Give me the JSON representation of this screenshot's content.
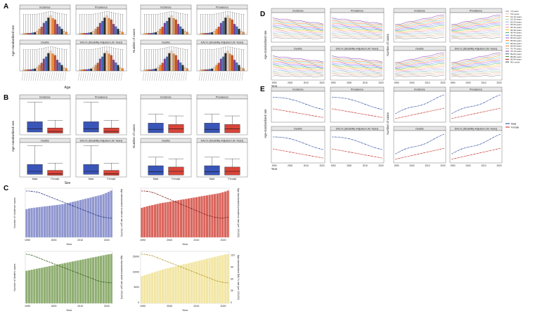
{
  "chart_data": [
    {
      "panel": "A",
      "type": "bar",
      "facets": [
        "Incidence",
        "Prevalence",
        "Deaths",
        "DALYs (Disability-Adjusted Life Years)"
      ],
      "ylabel_left": "Age-standardized rate",
      "ylabel_right": "Number of cases",
      "xlabel": "Age",
      "bar_colors": [
        "#f1c7a6",
        "#e88b3c",
        "#c94f2a",
        "#7b3f99",
        "#3d6bb3",
        "#2b2b2b"
      ]
    },
    {
      "panel": "B",
      "type": "box",
      "facets": [
        "Incidence",
        "Prevalence",
        "Deaths",
        "DALYs (Disability-Adjusted Life Years)"
      ],
      "categories": [
        "Male",
        "Female"
      ],
      "ylabel_left": "Age-standardized rate",
      "ylabel_right": "Number of cases",
      "xlabel": "Sex",
      "colors": {
        "Male": "#3a55b8",
        "Female": "#d9453a"
      }
    },
    {
      "panel": "C",
      "type": "bar",
      "xlabel": "Year",
      "x_ticks": [
        "1990",
        "2000",
        "2010",
        "2020"
      ],
      "subplots": [
        {
          "name": "incidence",
          "ylabel_left": "Number of incidence cases",
          "ylabel_right": "Age-standardized incidence rate (per 100,000)",
          "bar_color": "#8f96cf",
          "line_color": "#23307a",
          "counts": [
            180,
            184,
            187,
            189,
            191,
            193,
            195,
            197,
            199,
            201,
            203,
            205,
            207,
            209,
            212,
            215,
            218,
            222,
            226,
            230,
            234,
            238,
            242,
            246,
            250,
            254,
            258,
            262,
            266,
            270,
            276,
            283,
            290,
            298
          ],
          "rate": [
            8.0,
            8.0,
            7.95,
            7.9,
            7.85,
            7.75,
            7.6,
            7.45,
            7.3,
            7.15,
            7.0,
            6.85,
            6.7,
            6.55,
            6.4,
            6.25,
            6.1,
            5.95,
            5.8,
            5.65,
            5.5,
            5.35,
            5.2,
            5.05,
            4.9,
            4.75,
            4.6,
            4.45,
            4.3,
            4.2,
            4.1,
            4.05,
            4.0,
            3.98
          ]
        },
        {
          "name": "prevalence",
          "ylabel_right": "Age-standardized prevalence rate (per 100,000)",
          "bar_color": "#d9655c",
          "line_color": "#7a1a14",
          "counts": [
            200,
            205,
            210,
            214,
            218,
            222,
            226,
            230,
            233,
            236,
            239,
            242,
            245,
            248,
            251,
            254,
            257,
            260,
            263,
            266,
            269,
            272,
            275,
            278,
            281,
            284,
            287,
            290,
            293,
            296,
            300,
            305,
            310,
            316
          ],
          "rate": [
            9.0,
            9.0,
            8.95,
            8.9,
            8.8,
            8.7,
            8.55,
            8.4,
            8.25,
            8.1,
            7.95,
            7.8,
            7.65,
            7.5,
            7.35,
            7.2,
            7.05,
            6.9,
            6.75,
            6.6,
            6.45,
            6.3,
            6.15,
            6.0,
            5.85,
            5.7,
            5.6,
            5.5,
            5.4,
            5.35,
            5.3,
            5.3,
            5.35,
            5.4
          ]
        },
        {
          "name": "deaths",
          "ylabel_left": "Number of deaths cases",
          "ylabel_right": "Age-standardized death rate (per 100,000)",
          "bar_color": "#8fae72",
          "line_color": "#2f5a1c",
          "counts": [
            190,
            193,
            196,
            199,
            202,
            205,
            208,
            211,
            214,
            217,
            220,
            223,
            226,
            229,
            232,
            235,
            238,
            241,
            244,
            247,
            250,
            253,
            256,
            259,
            262,
            265,
            268,
            271,
            274,
            277,
            280,
            283,
            286,
            288
          ],
          "rate": [
            4.1,
            4.08,
            4.05,
            4.0,
            3.95,
            3.9,
            3.85,
            3.8,
            3.75,
            3.7,
            3.65,
            3.6,
            3.55,
            3.5,
            3.45,
            3.4,
            3.35,
            3.3,
            3.25,
            3.2,
            3.15,
            3.1,
            3.05,
            3.0,
            2.95,
            2.9,
            2.85,
            2.8,
            2.75,
            2.72,
            2.7,
            2.68,
            2.67,
            2.66
          ]
        },
        {
          "name": "DALYs",
          "ylabel_right": "Age-standardized DALYs rate (per 100,000)",
          "bar_color": "#f2e6a4",
          "line_color": "#b09020",
          "y_ticks": [
            "0",
            "5000",
            "10000",
            "15000"
          ],
          "y_ticks_right": [
            "0",
            "30",
            "60",
            "90",
            "120"
          ],
          "counts": [
            6500,
            6700,
            6900,
            7100,
            7300,
            7500,
            7700,
            7900,
            8100,
            8250,
            8400,
            8550,
            8700,
            8850,
            9000,
            9150,
            9300,
            9450,
            9600,
            9750,
            9900,
            10050,
            10200,
            10350,
            10500,
            10650,
            10800,
            10950,
            11100,
            11250,
            11400,
            11550,
            11700,
            11800
          ],
          "rate": [
            120,
            120,
            119,
            118,
            117,
            115,
            113,
            111,
            109,
            107,
            105,
            103,
            101,
            99,
            97,
            95,
            93,
            91,
            89,
            87,
            85,
            83,
            81,
            79,
            77,
            75,
            73,
            71,
            69,
            67,
            66,
            65,
            64,
            64
          ]
        }
      ]
    },
    {
      "panel": "D",
      "type": "line",
      "facets": [
        "Incidence",
        "Prevalence",
        "Deaths",
        "DALYs (Disability-Adjusted Life Years)"
      ],
      "ylabel_left": "Age-standardized rate",
      "ylabel_right": "Number of cases",
      "xlabel": "Year",
      "x_ticks": [
        "1990",
        "2000",
        "2010",
        "2020"
      ],
      "legend": [
        "<5 years",
        "5-9 years",
        "10-14 years",
        "15-19 years",
        "20-24 years",
        "25-29 years",
        "30-34 years",
        "35-39 years",
        "40-44 years",
        "45-49 years",
        "50-54 years",
        "55-59 years",
        "60-64 years",
        "65-69 years",
        "70-74 years",
        "75-79 years",
        "80-84 years",
        "85-89 years",
        "90-94 years",
        "95+ years"
      ]
    },
    {
      "panel": "E",
      "type": "line",
      "facets": [
        "Incidence",
        "Prevalence",
        "Deaths",
        "DALYs (Disability-Adjusted Life Years)"
      ],
      "ylabel_left": "Age-standardized rate",
      "ylabel_right": "Number of cases",
      "xlabel": "Year",
      "x_ticks": [
        "1990",
        "2000",
        "2010",
        "2020"
      ],
      "legend": [
        "Male",
        "Female"
      ],
      "colors": {
        "Male": "#1f3f99",
        "Female": "#c0281e"
      }
    }
  ],
  "panel_letters": [
    "A",
    "B",
    "C",
    "D",
    "E"
  ]
}
